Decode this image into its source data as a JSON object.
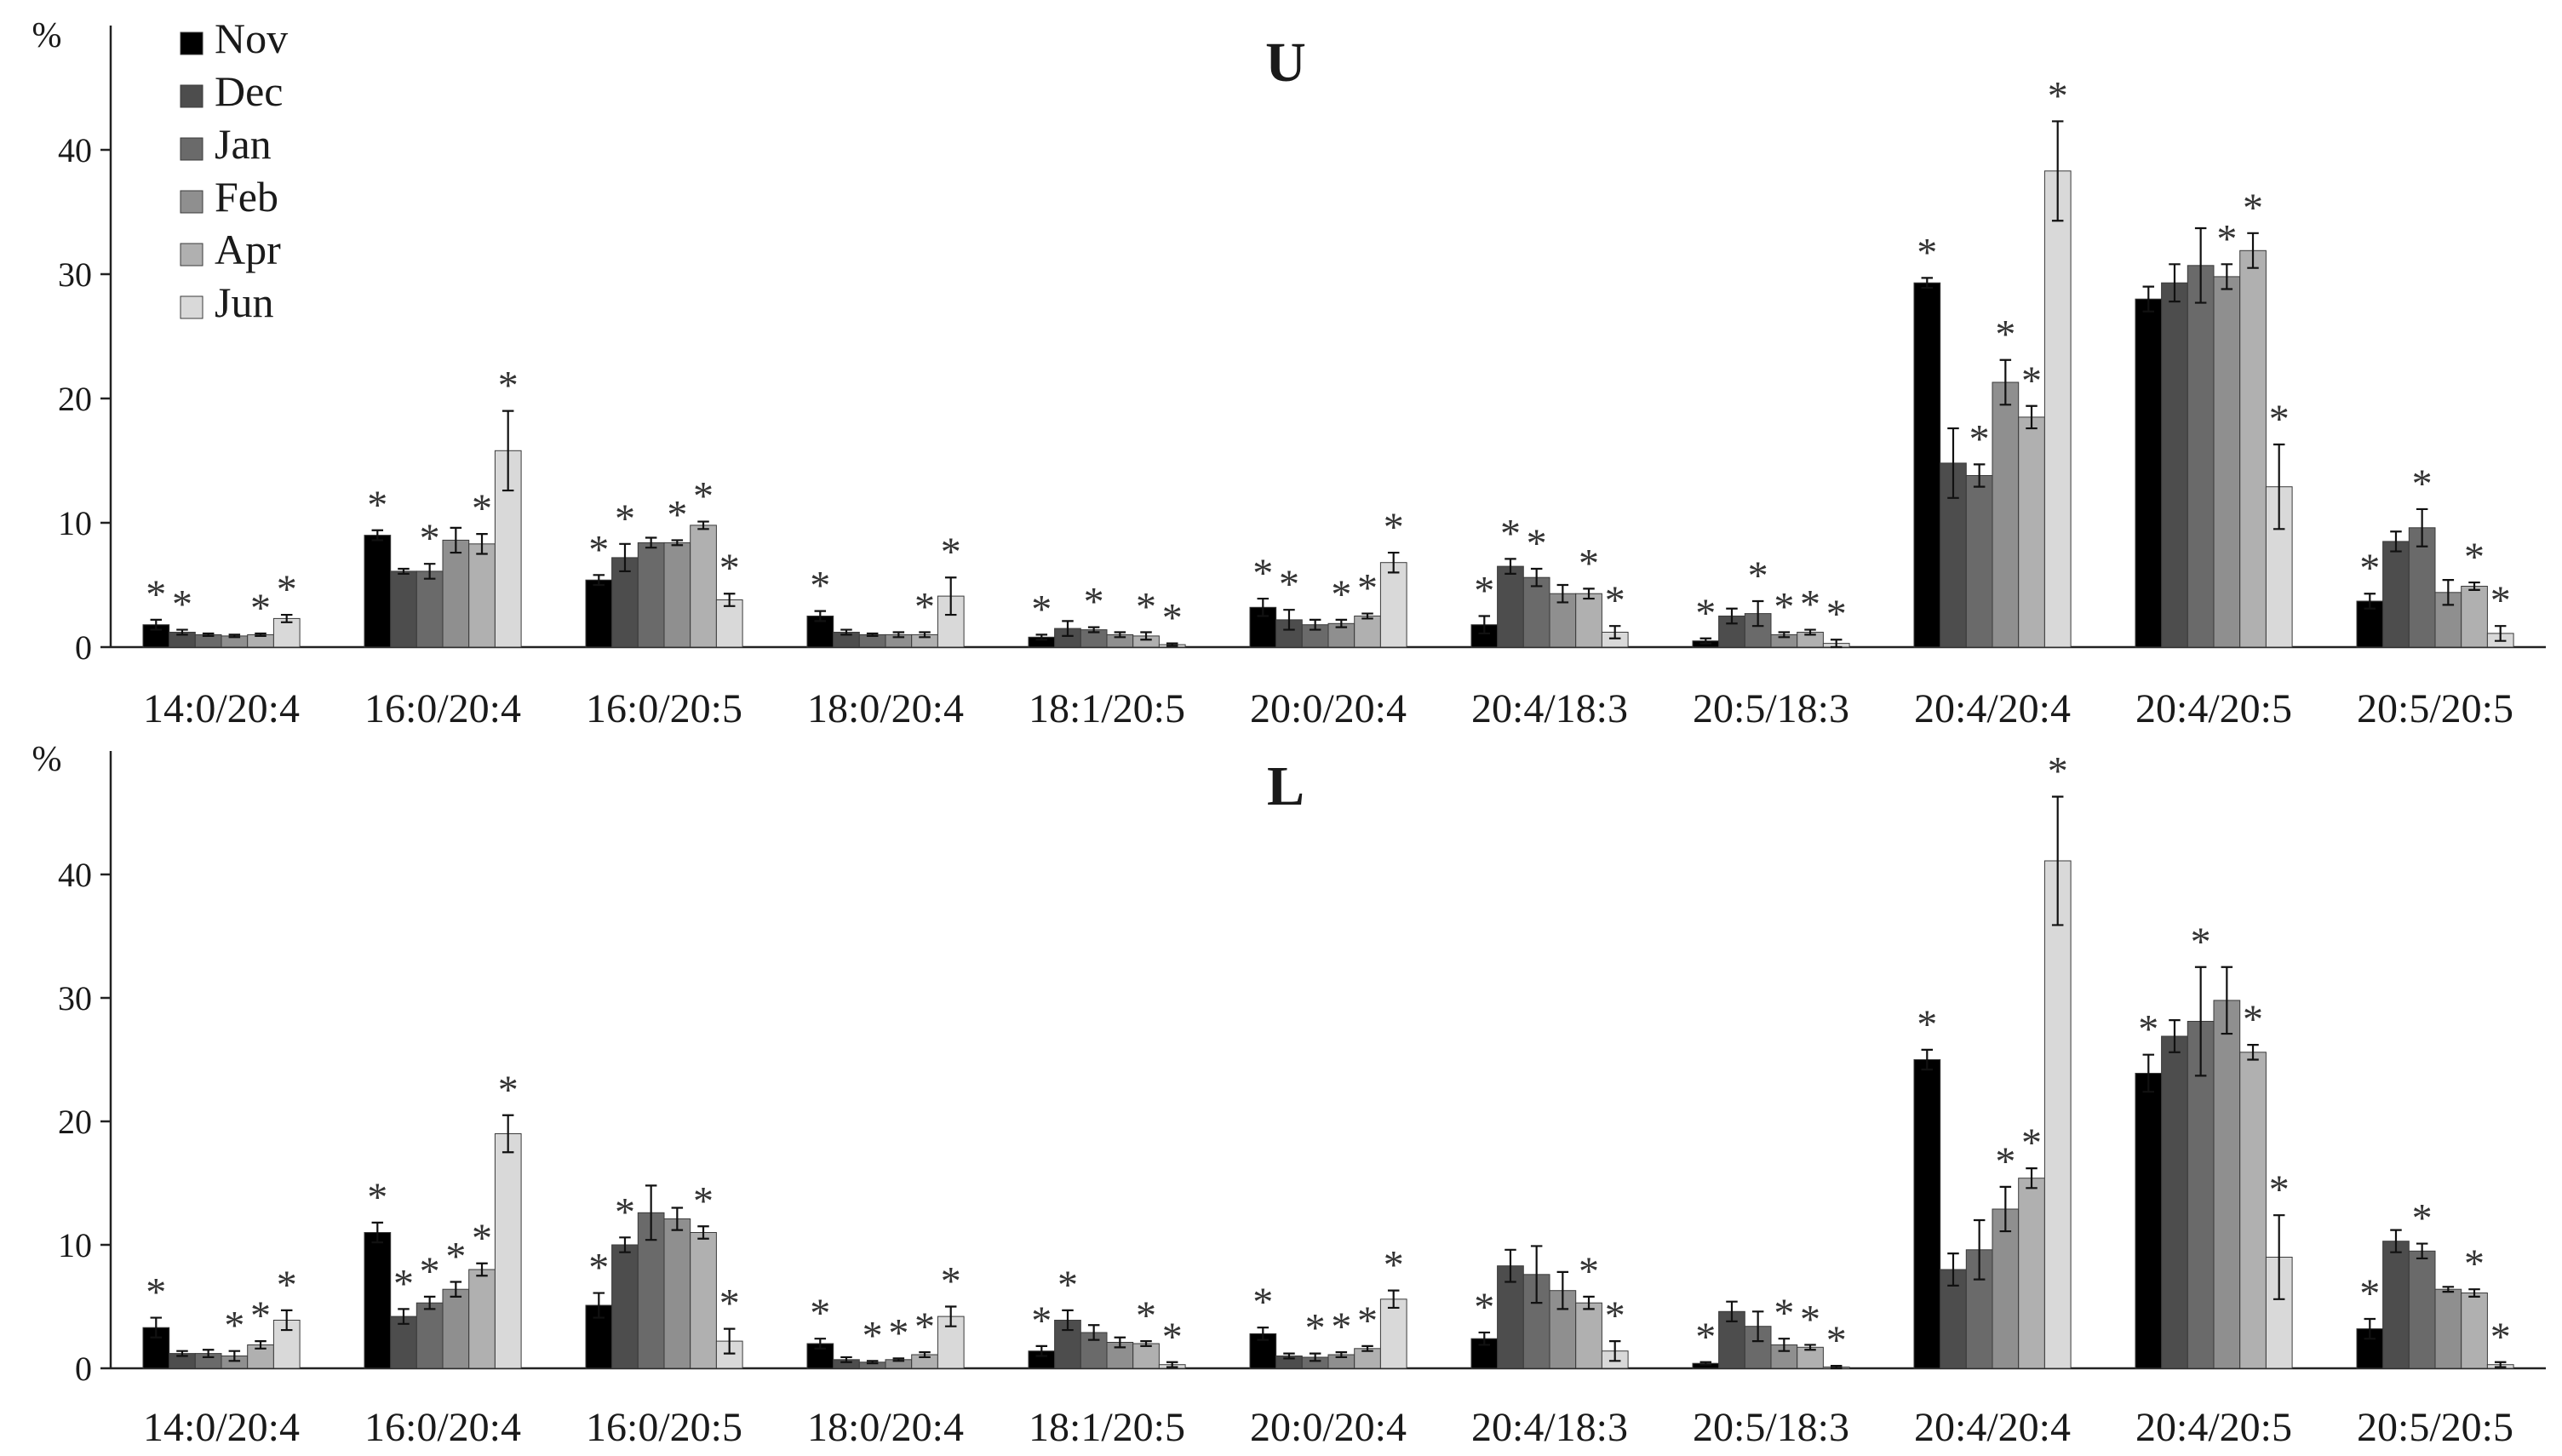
{
  "chart_data": [
    {
      "type": "bar",
      "title": "U",
      "ylabel": "%",
      "ylim": [
        0,
        50
      ],
      "yticks": [
        0,
        10,
        20,
        30,
        40
      ],
      "categories": [
        "14:0/20:4",
        "16:0/20:4",
        "16:0/20:5",
        "18:0/20:4",
        "18:1/20:5",
        "20:0/20:4",
        "20:4/18:3",
        "20:5/18:3",
        "20:4/20:4",
        "20:4/20:5",
        "20:5/20:5"
      ],
      "legend_position": "top-left",
      "grid": false,
      "significance_marker": "*",
      "series": [
        {
          "name": "Nov",
          "color": "#000000",
          "values": [
            1.8,
            9.0,
            5.4,
            2.5,
            0.8,
            3.2,
            1.8,
            0.5,
            29.3,
            28.0,
            3.7
          ],
          "errors": [
            0.4,
            0.4,
            0.4,
            0.4,
            0.2,
            0.7,
            0.7,
            0.2,
            0.4,
            1.0,
            0.6
          ],
          "significant": [
            true,
            true,
            true,
            true,
            true,
            true,
            true,
            true,
            true,
            false,
            true
          ]
        },
        {
          "name": "Dec",
          "color": "#4d4d4d",
          "values": [
            1.2,
            6.1,
            7.2,
            1.2,
            1.5,
            2.2,
            6.5,
            2.5,
            14.8,
            29.3,
            8.5
          ],
          "errors": [
            0.2,
            0.2,
            1.1,
            0.2,
            0.6,
            0.8,
            0.6,
            0.6,
            2.8,
            1.5,
            0.8
          ],
          "significant": [
            true,
            false,
            true,
            false,
            false,
            true,
            true,
            false,
            false,
            false,
            false
          ]
        },
        {
          "name": "Jan",
          "color": "#6a6a6a",
          "values": [
            1.0,
            6.1,
            8.4,
            1.0,
            1.4,
            1.8,
            5.6,
            2.7,
            13.8,
            30.7,
            9.6
          ],
          "errors": [
            0.1,
            0.6,
            0.4,
            0.1,
            0.2,
            0.4,
            0.7,
            1.0,
            0.9,
            3.0,
            1.5
          ],
          "significant": [
            false,
            true,
            false,
            false,
            true,
            false,
            true,
            true,
            true,
            false,
            true
          ]
        },
        {
          "name": "Feb",
          "color": "#8f8f8f",
          "values": [
            0.9,
            8.6,
            8.4,
            1.0,
            1.0,
            1.9,
            4.3,
            1.0,
            21.3,
            29.8,
            4.4
          ],
          "errors": [
            0.1,
            1.0,
            0.2,
            0.2,
            0.2,
            0.3,
            0.7,
            0.2,
            1.8,
            1.0,
            1.0
          ],
          "significant": [
            false,
            false,
            true,
            false,
            false,
            true,
            false,
            true,
            true,
            true,
            false
          ]
        },
        {
          "name": "Apr",
          "color": "#b0b0b0",
          "values": [
            1.0,
            8.3,
            9.8,
            1.0,
            0.9,
            2.5,
            4.3,
            1.2,
            18.5,
            31.9,
            4.9
          ],
          "errors": [
            0.1,
            0.8,
            0.3,
            0.2,
            0.3,
            0.2,
            0.4,
            0.2,
            0.9,
            1.4,
            0.3
          ],
          "significant": [
            true,
            true,
            true,
            true,
            true,
            true,
            true,
            true,
            true,
            true,
            true
          ]
        },
        {
          "name": "Jun",
          "color": "#d9d9d9",
          "values": [
            2.3,
            15.8,
            3.8,
            4.1,
            0.2,
            6.8,
            1.2,
            0.3,
            38.3,
            12.9,
            1.1
          ],
          "errors": [
            0.3,
            3.2,
            0.5,
            1.5,
            0.1,
            0.8,
            0.5,
            0.3,
            4.0,
            3.4,
            0.6
          ],
          "significant": [
            true,
            true,
            true,
            true,
            true,
            true,
            true,
            true,
            true,
            true,
            true
          ]
        }
      ]
    },
    {
      "type": "bar",
      "title": "L",
      "ylabel": "%",
      "ylim": [
        0,
        50
      ],
      "yticks": [
        0,
        10,
        20,
        30,
        40
      ],
      "categories": [
        "14:0/20:4",
        "16:0/20:4",
        "16:0/20:5",
        "18:0/20:4",
        "18:1/20:5",
        "20:0/20:4",
        "20:4/18:3",
        "20:5/18:3",
        "20:4/20:4",
        "20:4/20:5",
        "20:5/20:5"
      ],
      "grid": false,
      "significance_marker": "*",
      "series": [
        {
          "name": "Nov",
          "color": "#000000",
          "values": [
            3.3,
            11.0,
            5.1,
            2.0,
            1.4,
            2.8,
            2.4,
            0.4,
            25.0,
            23.9,
            3.2
          ],
          "errors": [
            0.8,
            0.8,
            1.0,
            0.4,
            0.4,
            0.5,
            0.5,
            0.1,
            0.8,
            1.5,
            0.8
          ],
          "significant": [
            true,
            true,
            true,
            true,
            true,
            true,
            true,
            true,
            true,
            true,
            true
          ]
        },
        {
          "name": "Dec",
          "color": "#4d4d4d",
          "values": [
            1.2,
            4.2,
            10.0,
            0.7,
            3.9,
            1.0,
            8.3,
            4.6,
            8.0,
            26.9,
            10.3
          ],
          "errors": [
            0.2,
            0.6,
            0.6,
            0.2,
            0.8,
            0.2,
            1.3,
            0.8,
            1.3,
            1.3,
            0.9
          ],
          "significant": [
            false,
            true,
            true,
            false,
            true,
            false,
            false,
            false,
            false,
            false,
            false
          ]
        },
        {
          "name": "Jan",
          "color": "#6a6a6a",
          "values": [
            1.2,
            5.3,
            12.6,
            0.5,
            2.9,
            0.9,
            7.6,
            3.4,
            9.6,
            28.1,
            9.5
          ],
          "errors": [
            0.3,
            0.5,
            2.2,
            0.1,
            0.6,
            0.3,
            2.3,
            1.2,
            2.4,
            4.4,
            0.6
          ],
          "significant": [
            false,
            true,
            false,
            true,
            false,
            true,
            false,
            false,
            false,
            true,
            true
          ]
        },
        {
          "name": "Feb",
          "color": "#8f8f8f",
          "values": [
            1.0,
            6.4,
            12.1,
            0.7,
            2.1,
            1.1,
            6.3,
            1.9,
            12.9,
            29.8,
            6.4
          ],
          "errors": [
            0.4,
            0.6,
            0.9,
            0.1,
            0.4,
            0.2,
            1.5,
            0.5,
            1.8,
            2.7,
            0.2
          ],
          "significant": [
            true,
            true,
            false,
            true,
            false,
            true,
            false,
            true,
            true,
            false,
            false
          ]
        },
        {
          "name": "Apr",
          "color": "#b0b0b0",
          "values": [
            1.9,
            8.0,
            11.0,
            1.1,
            2.0,
            1.6,
            5.3,
            1.7,
            15.4,
            25.6,
            6.1
          ],
          "errors": [
            0.3,
            0.5,
            0.5,
            0.2,
            0.2,
            0.2,
            0.5,
            0.2,
            0.8,
            0.6,
            0.3
          ],
          "significant": [
            true,
            true,
            true,
            true,
            true,
            true,
            true,
            true,
            true,
            true,
            true
          ]
        },
        {
          "name": "Jun",
          "color": "#d9d9d9",
          "values": [
            3.9,
            19.0,
            2.2,
            4.2,
            0.3,
            5.6,
            1.4,
            0.1,
            41.1,
            9.0,
            0.3
          ],
          "errors": [
            0.8,
            1.5,
            1.0,
            0.8,
            0.2,
            0.7,
            0.8,
            0.1,
            5.2,
            3.4,
            0.2
          ],
          "significant": [
            true,
            true,
            true,
            true,
            true,
            true,
            true,
            true,
            true,
            true,
            true
          ]
        }
      ]
    }
  ]
}
